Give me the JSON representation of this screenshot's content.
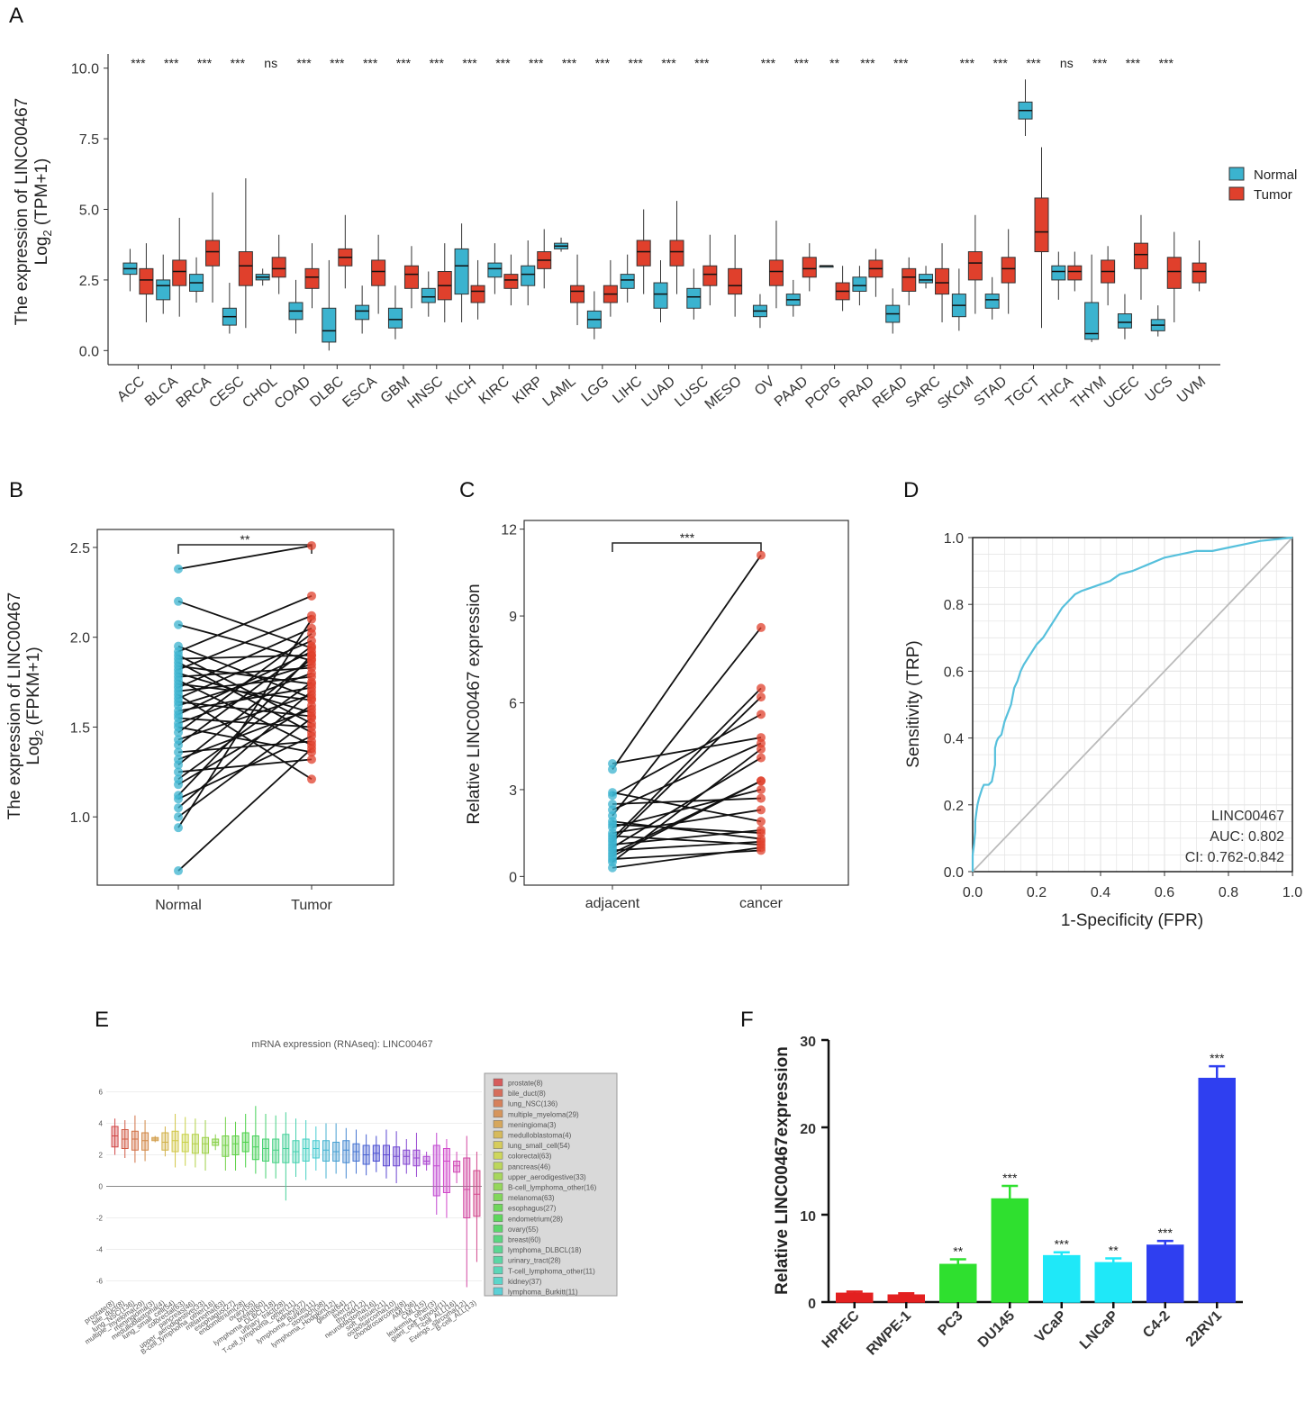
{
  "panel_labels": {
    "A": "A",
    "B": "B",
    "C": "C",
    "D": "D",
    "E": "E",
    "F": "F"
  },
  "colors": {
    "normal": "#3BB3CF",
    "tumor": "#E0402C",
    "line": "#111111",
    "roc": "#56C0DC",
    "diag": "#BBBBBB"
  },
  "chart_data": [
    {
      "id": "A",
      "type": "box",
      "ylabel_line1": "The expression of LINC00467",
      "ylabel_line2": "Log",
      "ylabel_sub": "2",
      "ylabel_line2_rest": " (TPM+1)",
      "yticks": [
        "0.0",
        "2.5",
        "5.0",
        "7.5",
        "10.0"
      ],
      "ylim": [
        -0.5,
        10.5
      ],
      "legend": [
        {
          "name": "Normal",
          "color": "#3BB3CF"
        },
        {
          "name": "Tumor",
          "color": "#E0402C"
        }
      ],
      "categories": [
        "ACC",
        "BLCA",
        "BRCA",
        "CESC",
        "CHOL",
        "COAD",
        "DLBC",
        "ESCA",
        "GBM",
        "HNSC",
        "KICH",
        "KIRC",
        "KIRP",
        "LAML",
        "LGG",
        "LIHC",
        "LUAD",
        "LUSC",
        "MESO",
        "OV",
        "PAAD",
        "PCPG",
        "PRAD",
        "READ",
        "SARC",
        "SKCM",
        "STAD",
        "TGCT",
        "THCA",
        "THYM",
        "UCEC",
        "UCS",
        "UVM"
      ],
      "significance": [
        "***",
        "***",
        "***",
        "***",
        "ns",
        "***",
        "***",
        "***",
        "***",
        "***",
        "***",
        "***",
        "***",
        "***",
        "***",
        "***",
        "***",
        "***",
        "",
        "***",
        "***",
        "**",
        "***",
        "***",
        "",
        "***",
        "***",
        "***",
        "ns",
        "***",
        "***",
        "***",
        ""
      ],
      "normal": [
        [
          2.1,
          2.7,
          2.9,
          3.1,
          3.6
        ],
        [
          1.3,
          1.8,
          2.3,
          2.5,
          3.4
        ],
        [
          1.7,
          2.1,
          2.4,
          2.7,
          3.3
        ],
        [
          0.6,
          0.9,
          1.2,
          1.5,
          2.4
        ],
        [
          2.3,
          2.5,
          2.6,
          2.7,
          2.9
        ],
        [
          0.6,
          1.1,
          1.4,
          1.7,
          2.5
        ],
        [
          0.0,
          0.3,
          0.7,
          1.5,
          3.2
        ],
        [
          0.6,
          1.1,
          1.4,
          1.6,
          2.3
        ],
        [
          0.4,
          0.8,
          1.1,
          1.5,
          2.3
        ],
        [
          1.2,
          1.7,
          1.9,
          2.2,
          2.8
        ],
        [
          1.0,
          2.0,
          3.0,
          3.6,
          4.5
        ],
        [
          2.0,
          2.6,
          2.9,
          3.1,
          3.8
        ],
        [
          1.6,
          2.3,
          2.7,
          3.0,
          3.9
        ],
        [
          3.5,
          3.6,
          3.7,
          3.8,
          4.0
        ],
        [
          0.4,
          0.8,
          1.1,
          1.4,
          2.1
        ],
        [
          1.7,
          2.2,
          2.5,
          2.7,
          3.4
        ],
        [
          1.0,
          1.5,
          2.0,
          2.4,
          3.2
        ],
        [
          1.1,
          1.5,
          1.9,
          2.2,
          2.9
        ],
        null,
        [
          0.8,
          1.2,
          1.4,
          1.6,
          2.0
        ],
        [
          1.2,
          1.6,
          1.8,
          2.0,
          2.5
        ],
        [
          3.0,
          3.0,
          3.0,
          3.0,
          3.0
        ],
        [
          1.6,
          2.1,
          2.3,
          2.6,
          3.0
        ],
        [
          0.6,
          1.0,
          1.3,
          1.6,
          2.2
        ],
        [
          2.2,
          2.4,
          2.5,
          2.7,
          3.0
        ],
        [
          0.7,
          1.2,
          1.6,
          2.0,
          2.9
        ],
        [
          1.1,
          1.5,
          1.8,
          2.0,
          2.6
        ],
        [
          7.6,
          8.2,
          8.5,
          8.8,
          9.6
        ],
        [
          1.8,
          2.5,
          2.8,
          3.0,
          3.5
        ],
        [
          0.3,
          0.4,
          0.6,
          1.7,
          3.4
        ],
        [
          0.4,
          0.8,
          1.0,
          1.3,
          2.0
        ],
        [
          0.5,
          0.7,
          0.9,
          1.1,
          1.6
        ],
        null
      ],
      "tumor": [
        [
          1.0,
          2.0,
          2.5,
          2.9,
          3.8
        ],
        [
          1.2,
          2.3,
          2.8,
          3.2,
          4.7
        ],
        [
          1.7,
          3.0,
          3.5,
          3.9,
          5.6
        ],
        [
          0.8,
          2.3,
          3.0,
          3.5,
          6.1
        ],
        [
          2.0,
          2.6,
          2.9,
          3.3,
          4.1
        ],
        [
          1.5,
          2.2,
          2.6,
          2.9,
          3.8
        ],
        [
          2.2,
          3.0,
          3.3,
          3.6,
          4.8
        ],
        [
          1.3,
          2.3,
          2.8,
          3.2,
          4.1
        ],
        [
          1.5,
          2.2,
          2.7,
          3.0,
          3.7
        ],
        [
          1.0,
          1.8,
          2.3,
          2.8,
          3.8
        ],
        [
          1.1,
          1.7,
          2.1,
          2.3,
          3.2
        ],
        [
          1.6,
          2.2,
          2.5,
          2.7,
          3.4
        ],
        [
          2.2,
          2.9,
          3.2,
          3.5,
          4.3
        ],
        [
          0.9,
          1.7,
          2.1,
          2.3,
          3.4
        ],
        [
          1.2,
          1.7,
          2.0,
          2.3,
          3.2
        ],
        [
          2.0,
          3.0,
          3.5,
          3.9,
          5.0
        ],
        [
          2.0,
          3.0,
          3.5,
          3.9,
          5.3
        ],
        [
          1.6,
          2.3,
          2.7,
          3.0,
          4.1
        ],
        [
          1.2,
          2.0,
          2.3,
          2.9,
          4.1
        ],
        [
          1.5,
          2.3,
          2.8,
          3.2,
          4.6
        ],
        [
          2.1,
          2.6,
          2.9,
          3.3,
          3.8
        ],
        [
          1.4,
          1.8,
          2.1,
          2.4,
          3.0
        ],
        [
          1.9,
          2.6,
          2.9,
          3.2,
          3.6
        ],
        [
          1.6,
          2.1,
          2.6,
          2.9,
          3.3
        ],
        [
          1.0,
          2.0,
          2.4,
          2.9,
          3.8
        ],
        [
          1.3,
          2.5,
          3.1,
          3.5,
          4.8
        ],
        [
          1.3,
          2.4,
          2.9,
          3.3,
          4.3
        ],
        [
          0.8,
          3.5,
          4.2,
          5.4,
          7.2
        ],
        [
          2.1,
          2.5,
          2.8,
          3.0,
          3.5
        ],
        [
          1.6,
          2.4,
          2.8,
          3.2,
          3.7
        ],
        [
          1.8,
          2.9,
          3.4,
          3.8,
          4.8
        ],
        [
          1.0,
          2.2,
          2.8,
          3.3,
          4.2
        ],
        [
          2.1,
          2.4,
          2.8,
          3.1,
          3.9
        ]
      ]
    },
    {
      "id": "B",
      "type": "paired",
      "ylabel_line1": "The expression of LINC00467",
      "ylabel_line2": "Log",
      "ylabel_sub": "2",
      "ylabel_line2_rest": " (FPKM+1)",
      "categories": [
        "Normal",
        "Tumor"
      ],
      "yticks": [
        "1.0",
        "1.5",
        "2.0",
        "2.5"
      ],
      "ylim": [
        0.62,
        2.6
      ],
      "significance": "**",
      "normal": [
        0.7,
        0.94,
        1.0,
        1.05,
        1.1,
        1.12,
        1.18,
        1.21,
        1.25,
        1.29,
        1.32,
        1.36,
        1.4,
        1.43,
        1.47,
        1.5,
        1.52,
        1.55,
        1.57,
        1.59,
        1.62,
        1.64,
        1.66,
        1.68,
        1.7,
        1.72,
        1.74,
        1.76,
        1.78,
        1.8,
        1.82,
        1.84,
        1.86,
        1.88,
        1.9,
        1.92,
        1.95,
        2.07,
        2.2,
        2.38
      ],
      "tumor": [
        1.38,
        2.1,
        1.55,
        1.7,
        1.45,
        1.9,
        1.62,
        1.75,
        1.32,
        1.88,
        1.6,
        1.42,
        1.95,
        1.68,
        2.02,
        1.36,
        1.8,
        1.5,
        1.92,
        1.72,
        1.85,
        1.56,
        1.98,
        1.21,
        1.78,
        2.05,
        1.65,
        1.4,
        1.83,
        1.58,
        2.12,
        1.74,
        1.47,
        1.9,
        1.52,
        2.23,
        1.66,
        1.87,
        1.94,
        2.51
      ]
    },
    {
      "id": "C",
      "type": "paired",
      "ylabel": "Relative LINC00467 expression",
      "categories": [
        "adjacent",
        "cancer"
      ],
      "yticks": [
        "0",
        "3",
        "6",
        "9",
        "12"
      ],
      "ylim": [
        -0.3,
        12.3
      ],
      "significance": "***",
      "adjacent": [
        0.3,
        0.5,
        0.6,
        0.8,
        0.9,
        1.0,
        1.1,
        1.2,
        1.4,
        1.5,
        1.7,
        1.9,
        2.1,
        2.3,
        2.5,
        2.8,
        2.9,
        3.7,
        3.9,
        1.3,
        0.7,
        1.8
      ],
      "cancer": [
        1.0,
        4.4,
        0.9,
        3.3,
        1.2,
        4.1,
        1.6,
        6.2,
        1.1,
        2.3,
        3.0,
        1.3,
        8.6,
        4.6,
        2.7,
        5.6,
        1.9,
        11.1,
        4.8,
        6.5,
        3.3,
        1.5
      ]
    },
    {
      "id": "D",
      "type": "roc",
      "xlabel": "1-Specificity  (FPR)",
      "ylabel": "Sensitivity (TRP)",
      "xticks": [
        "0.0",
        "0.2",
        "0.4",
        "0.6",
        "0.8",
        "1.0"
      ],
      "yticks": [
        "0.0",
        "0.2",
        "0.4",
        "0.6",
        "0.8",
        "1.0"
      ],
      "annotation": [
        "LINC00467",
        "AUC: 0.802",
        "CI: 0.762-0.842"
      ],
      "fpr": [
        0,
        0,
        0.004,
        0.008,
        0.008,
        0.012,
        0.015,
        0.02,
        0.03,
        0.035,
        0.05,
        0.06,
        0.07,
        0.07,
        0.075,
        0.08,
        0.09,
        0.1,
        0.12,
        0.13,
        0.14,
        0.15,
        0.16,
        0.18,
        0.2,
        0.22,
        0.24,
        0.26,
        0.28,
        0.3,
        0.32,
        0.34,
        0.37,
        0.4,
        0.43,
        0.46,
        0.5,
        0.55,
        0.6,
        0.65,
        0.7,
        0.75,
        0.8,
        0.85,
        0.9,
        0.95,
        1.0
      ],
      "tpr": [
        0,
        0.05,
        0.08,
        0.12,
        0.15,
        0.18,
        0.2,
        0.22,
        0.25,
        0.26,
        0.26,
        0.27,
        0.32,
        0.37,
        0.39,
        0.4,
        0.41,
        0.45,
        0.5,
        0.55,
        0.57,
        0.6,
        0.62,
        0.65,
        0.68,
        0.7,
        0.73,
        0.76,
        0.79,
        0.81,
        0.83,
        0.84,
        0.85,
        0.86,
        0.87,
        0.89,
        0.9,
        0.92,
        0.94,
        0.95,
        0.96,
        0.96,
        0.97,
        0.98,
        0.99,
        0.995,
        1.0
      ]
    },
    {
      "id": "E",
      "type": "box",
      "title": "mRNA expression (RNAseq): LINC00467",
      "yticks": [
        "-6",
        "-4",
        "-2",
        "0",
        "2",
        "4",
        "6"
      ],
      "ylim": [
        -7,
        7
      ],
      "legend": [
        "prostate(8)",
        "bile_duct(8)",
        "lung_NSC(136)",
        "multiple_myeloma(29)",
        "meningioma(3)",
        "medulloblastoma(4)",
        "lung_small_cell(54)",
        "colorectal(63)",
        "pancreas(46)",
        "upper_aerodigestive(33)",
        "B-cell_lymphoma_other(16)",
        "melanoma(63)",
        "esophagus(27)",
        "endometrium(28)",
        "ovary(55)",
        "breast(60)",
        "lymphoma_DLBCL(18)",
        "urinary_tract(28)",
        "T-cell_lymphoma_other(11)",
        "kidney(37)",
        "lymphoma_Burkitt(11)"
      ],
      "categories": [
        "prostate(8)",
        "bile_duct(8)",
        "lung_NSC(136)",
        "multiple_myeloma(29)",
        "meningioma(3)",
        "medulloblastoma(4)",
        "lung_small_cell(54)",
        "colorectal(63)",
        "pancreas(46)",
        "upper_aerodigestive(33)",
        "B-cell_lymphoma_other(16)",
        "melanoma(63)",
        "esophagus(27)",
        "endometrium(28)",
        "ovary(55)",
        "breast(60)",
        "lymphoma_DLBCL(18)",
        "urinary_tract(28)",
        "T-cell_lymphoma_other(11)",
        "kidney(37)",
        "lymphoma_Burkitt(11)",
        "stomach(38)",
        "lymphoma_Hodgkin(12)",
        "glioma(64)",
        "liver(27)",
        "thyroid(12)",
        "neuroblastoma(16)",
        "soft_tissue(21)",
        "osteosarcoma(10)",
        "chondrosarcoma(8)",
        "AML(36)",
        "CML(15)",
        "leukemia_other(3)",
        "giant_cell_tumour(1)",
        "T-cell_ALL(16)",
        "Ewings_sarcoma(12)",
        "B-cell_ALL(13)"
      ],
      "stats": [
        [
          2.0,
          2.5,
          3.2,
          3.8,
          4.3
        ],
        [
          1.8,
          2.4,
          3.0,
          3.6,
          4.2
        ],
        [
          1.5,
          2.3,
          3.0,
          3.5,
          4.5
        ],
        [
          1.6,
          2.3,
          2.9,
          3.4,
          4.2
        ],
        [
          2.8,
          2.9,
          3.0,
          3.1,
          3.2
        ],
        [
          1.9,
          2.3,
          2.8,
          3.4,
          3.8
        ],
        [
          1.2,
          2.2,
          2.9,
          3.5,
          4.6
        ],
        [
          1.3,
          2.2,
          2.8,
          3.3,
          4.4
        ],
        [
          1.2,
          2.1,
          2.7,
          3.3,
          4.3
        ],
        [
          1.0,
          2.1,
          2.7,
          3.1,
          4.2
        ],
        [
          2.3,
          2.6,
          2.8,
          3.0,
          3.3
        ],
        [
          1.0,
          1.9,
          2.6,
          3.2,
          4.4
        ],
        [
          1.0,
          2.0,
          2.7,
          3.2,
          4.1
        ],
        [
          1.2,
          2.2,
          2.8,
          3.4,
          4.6
        ],
        [
          0.8,
          1.7,
          2.5,
          3.2,
          5.1
        ],
        [
          0.5,
          1.6,
          2.4,
          3.0,
          4.6
        ],
        [
          0.5,
          1.5,
          2.3,
          3.0,
          4.5
        ],
        [
          -0.9,
          1.5,
          2.4,
          3.3,
          4.7
        ],
        [
          0.6,
          1.5,
          2.2,
          2.9,
          4.3
        ],
        [
          0.4,
          1.6,
          2.4,
          3.0,
          4.2
        ],
        [
          1.0,
          1.8,
          2.4,
          2.9,
          3.8
        ],
        [
          0.5,
          1.6,
          2.3,
          2.9,
          4.0
        ],
        [
          0.8,
          1.6,
          2.2,
          2.8,
          4.0
        ],
        [
          0.5,
          1.5,
          2.3,
          2.9,
          3.7
        ],
        [
          0.8,
          1.6,
          2.2,
          2.7,
          3.6
        ],
        [
          0.7,
          1.4,
          2.0,
          2.6,
          3.3
        ],
        [
          0.9,
          1.6,
          2.1,
          2.6,
          3.2
        ],
        [
          0.5,
          1.3,
          2.0,
          2.6,
          3.6
        ],
        [
          0.2,
          1.3,
          1.9,
          2.5,
          3.5
        ],
        [
          0.8,
          1.4,
          1.9,
          2.3,
          3.0
        ],
        [
          0.6,
          1.3,
          1.8,
          2.3,
          3.4
        ],
        [
          1.0,
          1.4,
          1.6,
          1.9,
          2.2
        ],
        [
          -1.8,
          -0.6,
          1.3,
          2.6,
          3.4
        ],
        [
          -2.0,
          -0.4,
          1.6,
          2.4,
          3.0
        ],
        [
          0.2,
          0.9,
          1.3,
          1.6,
          2.2
        ],
        [
          -6.4,
          -2.0,
          -0.2,
          1.8,
          3.2
        ],
        [
          -4.8,
          -1.9,
          -0.5,
          1.0,
          2.2
        ]
      ]
    },
    {
      "id": "F",
      "type": "bar",
      "ylabel": "Relative LINC00467expression",
      "yticks": [
        "0",
        "10",
        "20",
        "30"
      ],
      "ylim": [
        0,
        30
      ],
      "categories": [
        "HPrEC",
        "RWPE-1",
        "PC3",
        "DU145",
        "VCaP",
        "LNCaP",
        "C4-2",
        "22RV1"
      ],
      "values": [
        1.0,
        0.8,
        4.3,
        11.8,
        5.3,
        4.5,
        6.5,
        25.6
      ],
      "errors": [
        0.2,
        0.2,
        0.6,
        1.5,
        0.4,
        0.5,
        0.5,
        1.4
      ],
      "significance": [
        "",
        "",
        "**",
        "***",
        "***",
        "**",
        "***",
        "***"
      ],
      "colors": [
        "#E32020",
        "#E32020",
        "#2FE02F",
        "#2FE02F",
        "#1FE8F8",
        "#1FE8F8",
        "#2F3FF0",
        "#2F3FF0"
      ]
    }
  ]
}
